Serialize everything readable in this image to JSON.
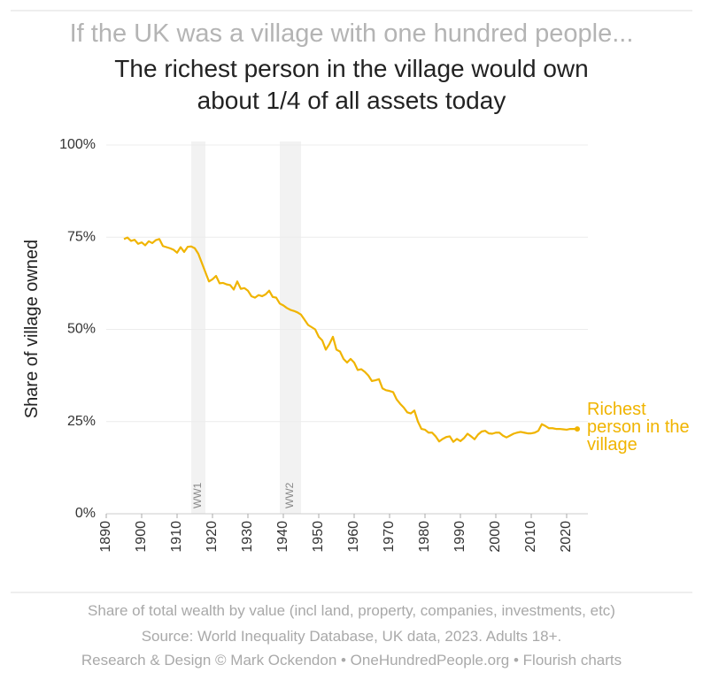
{
  "chart_data": {
    "type": "line",
    "supertitle": "If the UK was a village with one hundred people...",
    "title": "The richest person in the village would own about 1/4 of all assets today",
    "y_label": "Share of village owned",
    "footer": [
      "Share of total wealth by value (incl land, property, companies, investments, etc)",
      "Source: World Inequality Database, UK data, 2023. Adults 18+.",
      "Research & Design © Mark Ockendon • OneHundredPeople.org • Flourish charts"
    ],
    "bands": [
      {
        "label": "WW1",
        "start": 1914,
        "end": 1918
      },
      {
        "label": "WW2",
        "start": 1939,
        "end": 1945
      }
    ],
    "xlim": [
      1890,
      2026
    ],
    "xticks": [
      1890,
      1900,
      1910,
      1920,
      1930,
      1940,
      1950,
      1960,
      1970,
      1980,
      1990,
      2000,
      2010,
      2020
    ],
    "ylim": [
      0,
      100
    ],
    "yticks": [
      {
        "value": 0,
        "label": "0%"
      },
      {
        "value": 25,
        "label": "25%"
      },
      {
        "value": 50,
        "label": "50%"
      },
      {
        "value": 75,
        "label": "75%"
      },
      {
        "value": 100,
        "label": "100%"
      }
    ],
    "grid": true,
    "x": [
      1895,
      1896,
      1897,
      1898,
      1899,
      1900,
      1901,
      1902,
      1903,
      1904,
      1905,
      1906,
      1907,
      1908,
      1909,
      1910,
      1911,
      1912,
      1913,
      1914,
      1915,
      1916,
      1917,
      1918,
      1919,
      1920,
      1921,
      1922,
      1923,
      1924,
      1925,
      1926,
      1927,
      1928,
      1929,
      1930,
      1931,
      1932,
      1933,
      1934,
      1935,
      1936,
      1937,
      1938,
      1939,
      1940,
      1941,
      1942,
      1943,
      1944,
      1945,
      1946,
      1947,
      1948,
      1949,
      1950,
      1951,
      1952,
      1953,
      1954,
      1955,
      1956,
      1957,
      1958,
      1959,
      1960,
      1961,
      1962,
      1963,
      1964,
      1965,
      1966,
      1967,
      1968,
      1969,
      1970,
      1971,
      1972,
      1973,
      1974,
      1975,
      1976,
      1977,
      1978,
      1979,
      1980,
      1981,
      1982,
      1983,
      1984,
      1985,
      1986,
      1987,
      1988,
      1989,
      1990,
      1991,
      1992,
      1993,
      1994,
      1995,
      1996,
      1997,
      1998,
      1999,
      2000,
      2001,
      2002,
      2003,
      2004,
      2005,
      2006,
      2007,
      2008,
      2009,
      2010,
      2011,
      2012,
      2013,
      2014,
      2015,
      2016,
      2017,
      2018,
      2019,
      2020,
      2021,
      2022,
      2023
    ],
    "series": [
      {
        "name": "Richest person in the village",
        "color": "#f0b400",
        "values": [
          74.5,
          74.9,
          74.0,
          74.3,
          73.2,
          73.6,
          72.8,
          73.9,
          73.4,
          74.2,
          74.5,
          72.6,
          72.3,
          72.0,
          71.6,
          70.8,
          72.3,
          71.0,
          72.4,
          72.5,
          72.0,
          70.5,
          68.0,
          65.5,
          63.0,
          63.6,
          64.5,
          62.5,
          62.6,
          62.2,
          62.0,
          60.8,
          63.0,
          61.0,
          61.2,
          60.5,
          59.0,
          58.6,
          59.3,
          59.0,
          59.5,
          60.5,
          58.8,
          58.6,
          57.0,
          56.5,
          55.8,
          55.3,
          55.0,
          54.6,
          54.0,
          52.6,
          51.2,
          50.6,
          50.0,
          48.0,
          47.0,
          44.5,
          46.0,
          48.0,
          44.5,
          44.0,
          42.0,
          41.0,
          42.0,
          41.0,
          39.0,
          39.2,
          38.5,
          37.5,
          36.0,
          36.2,
          36.5,
          34.0,
          33.5,
          33.3,
          33.0,
          31.0,
          29.8,
          28.8,
          27.5,
          27.2,
          28.0,
          25.0,
          23.0,
          22.8,
          22.0,
          22.0,
          21.0,
          19.6,
          20.3,
          20.8,
          21.0,
          19.5,
          20.3,
          19.7,
          20.5,
          21.7,
          21.0,
          20.2,
          21.5,
          22.3,
          22.5,
          21.8,
          21.7,
          22.0,
          22.0,
          21.2,
          20.7,
          21.2,
          21.7,
          22.0,
          22.2,
          22.0,
          21.8,
          21.8,
          22.0,
          22.5,
          24.3,
          23.8,
          23.2,
          23.2,
          23.0,
          23.0,
          22.9,
          22.8,
          23.0,
          23.0,
          23.0
        ]
      }
    ]
  }
}
